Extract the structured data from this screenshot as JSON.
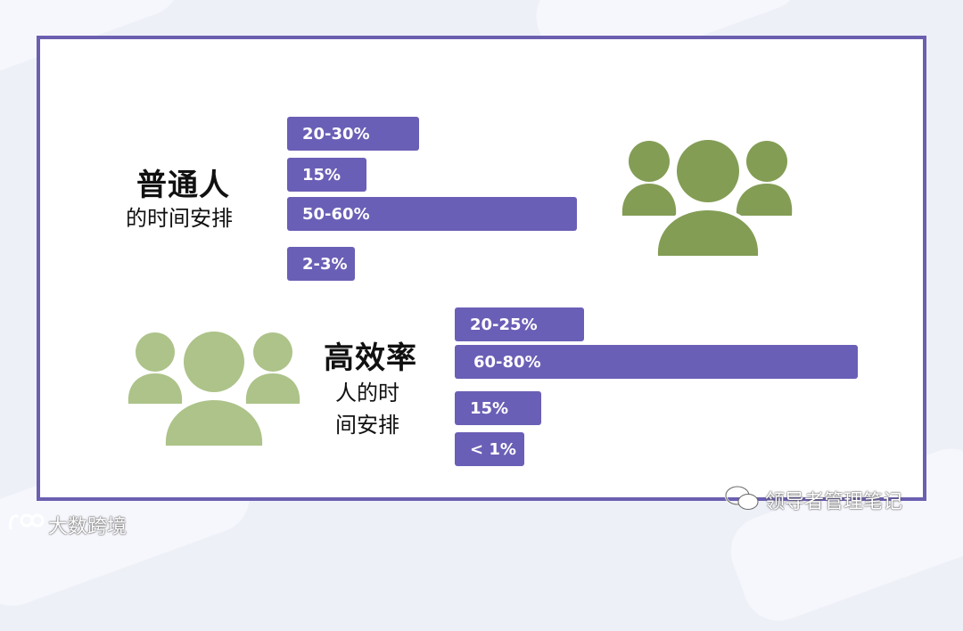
{
  "chart_data": [
    {
      "type": "bar",
      "title": "普通人",
      "subtitle": "的时间安排",
      "categories": [
        "20-30%",
        "15%",
        "50-60%",
        "2-3%"
      ],
      "values": [
        25,
        15,
        55,
        2.5
      ],
      "bar_labels": [
        "20-30%",
        "15%",
        "50-60%",
        "2-3%"
      ]
    },
    {
      "type": "bar",
      "title": "高效率",
      "subtitle_lines": [
        "人的时",
        "间安排"
      ],
      "categories": [
        "20-25%",
        "60-80%",
        "15%",
        "< 1%"
      ],
      "values": [
        22.5,
        70,
        15,
        1
      ],
      "bar_labels": [
        "20-25%",
        "60-80%",
        "15%",
        "< 1%"
      ]
    }
  ],
  "colors": {
    "bar": "#6a5fb6",
    "frame": "#6b5fb0",
    "people_dark": "#839d55",
    "people_light": "#adc389"
  },
  "icons": {
    "top_group": "people-group-icon",
    "bottom_group": "people-group-icon"
  },
  "watermarks": {
    "right": "领导者管理笔记",
    "left": "大数跨境"
  }
}
